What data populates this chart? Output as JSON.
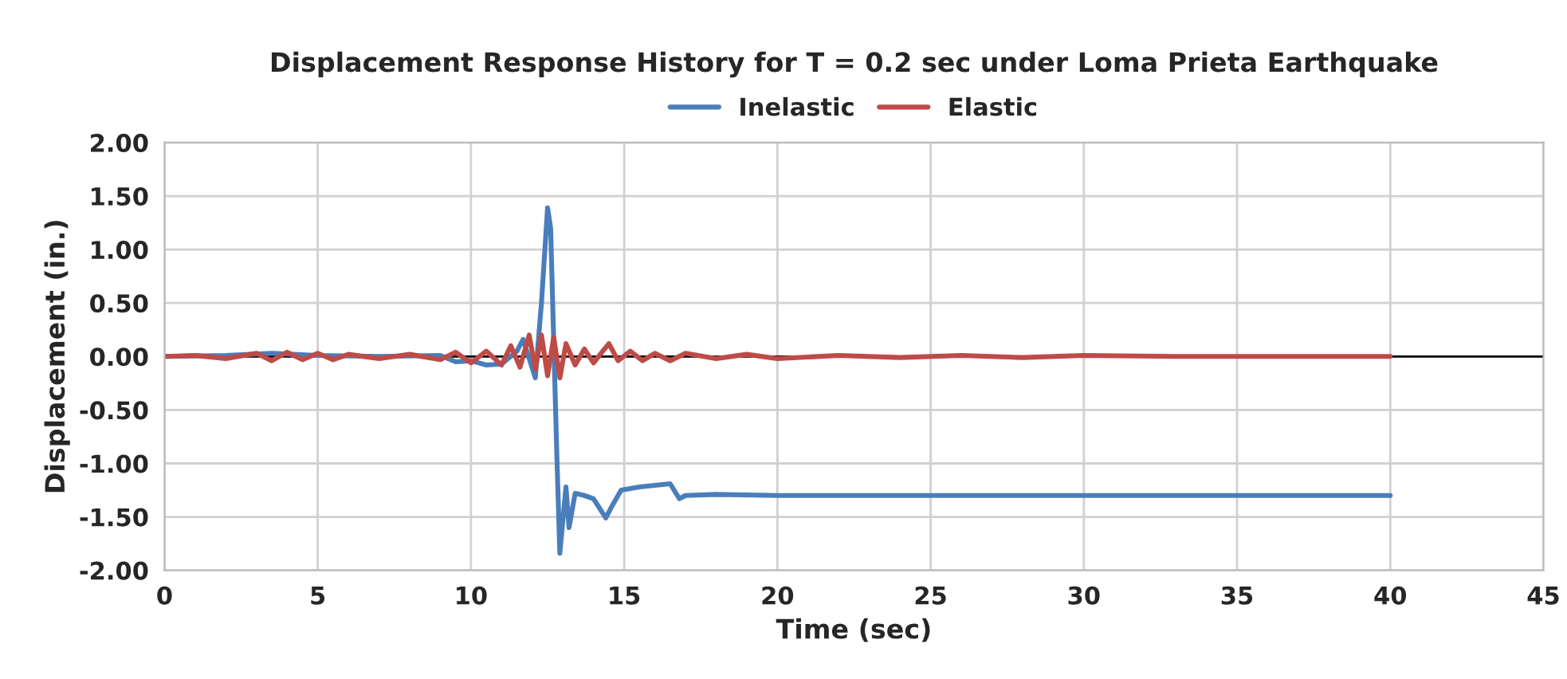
{
  "chart_data": {
    "type": "line",
    "title": "Displacement Response History for T = 0.2 sec under Loma Prieta Earthquake",
    "xlabel": "Time (sec)",
    "ylabel": "Displacement (in.)",
    "xlim": [
      0,
      45
    ],
    "ylim": [
      -2,
      2
    ],
    "xticks": [
      0,
      5,
      10,
      15,
      20,
      25,
      30,
      35,
      40,
      45
    ],
    "yticks": [
      {
        "value": -2,
        "label": "-2.00"
      },
      {
        "value": -1.5,
        "label": "-1.50"
      },
      {
        "value": -1,
        "label": "-1.00"
      },
      {
        "value": -0.5,
        "label": "-0.50"
      },
      {
        "value": 0,
        "label": "0.00"
      },
      {
        "value": 0.5,
        "label": "0.50"
      },
      {
        "value": 1,
        "label": "1.00"
      },
      {
        "value": 1.5,
        "label": "1.50"
      },
      {
        "value": 2,
        "label": "2.00"
      }
    ],
    "grid": true,
    "legend": "top",
    "marker": "none",
    "line_style": "solid",
    "series": [
      {
        "name": "Inelastic",
        "color": "#4a7ebb",
        "x": [
          0,
          2,
          3.5,
          5,
          7,
          9,
          9.5,
          10,
          10.5,
          11,
          11.5,
          11.7,
          12.1,
          12.3,
          12.5,
          12.6,
          12.8,
          12.9,
          13.1,
          13.2,
          13.4,
          13.7,
          14,
          14.4,
          14.6,
          14.9,
          15.5,
          16.5,
          16.8,
          17,
          18,
          20,
          25,
          30,
          35,
          40
        ],
        "values": [
          0,
          0.01,
          0.03,
          0.01,
          0,
          0.01,
          -0.05,
          -0.04,
          -0.08,
          -0.07,
          0.05,
          0.16,
          -0.2,
          0.5,
          1.39,
          1.2,
          -0.9,
          -1.84,
          -1.22,
          -1.6,
          -1.28,
          -1.3,
          -1.33,
          -1.51,
          -1.4,
          -1.25,
          -1.22,
          -1.19,
          -1.33,
          -1.3,
          -1.29,
          -1.3,
          -1.3,
          -1.3,
          -1.3,
          -1.3
        ]
      },
      {
        "name": "Elastic",
        "color": "#be4b48",
        "x": [
          0,
          1,
          2,
          3,
          3.5,
          4,
          4.5,
          5,
          5.5,
          6,
          7,
          8,
          9,
          9.5,
          10,
          10.5,
          11,
          11.3,
          11.6,
          11.9,
          12.1,
          12.3,
          12.5,
          12.7,
          12.9,
          13.1,
          13.4,
          13.7,
          14,
          14.3,
          14.5,
          14.8,
          15.2,
          15.6,
          16,
          16.5,
          17,
          18,
          19,
          20,
          22,
          24,
          26,
          28,
          30,
          33,
          36,
          40
        ],
        "values": [
          0,
          0.01,
          -0.02,
          0.03,
          -0.04,
          0.04,
          -0.03,
          0.03,
          -0.03,
          0.02,
          -0.02,
          0.02,
          -0.03,
          0.04,
          -0.06,
          0.05,
          -0.08,
          0.1,
          -0.1,
          0.2,
          -0.12,
          0.2,
          -0.18,
          0.18,
          -0.2,
          0.12,
          -0.08,
          0.07,
          -0.06,
          0.05,
          0.12,
          -0.04,
          0.05,
          -0.04,
          0.03,
          -0.04,
          0.03,
          -0.02,
          0.02,
          -0.02,
          0.01,
          -0.01,
          0.01,
          -0.01,
          0.01,
          0,
          0,
          0
        ]
      }
    ]
  }
}
